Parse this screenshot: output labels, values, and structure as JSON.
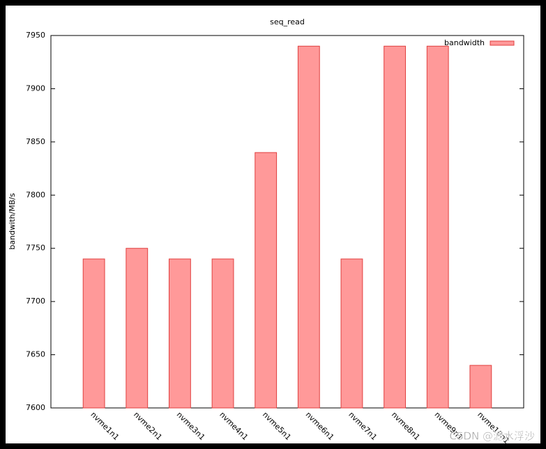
{
  "chart_data": {
    "type": "bar",
    "title": "seq_read",
    "y_label": "bandwith/MB/s",
    "categories": [
      "nvme1n1",
      "nvme2n1",
      "nvme3n1",
      "nvme4n1",
      "nvme5n1",
      "nvme6n1",
      "nvme7n1",
      "nvme8n1",
      "nvme9n1",
      "nvme10n1"
    ],
    "series": [
      {
        "name": "bandwidth",
        "color": "#ff9999",
        "values": [
          7740,
          7750,
          7740,
          7740,
          7840,
          7940,
          7740,
          7940,
          7940,
          7640
        ]
      }
    ],
    "ylim": [
      7600,
      7950
    ],
    "yticks": [
      7600,
      7650,
      7700,
      7750,
      7800,
      7850,
      7900,
      7950
    ],
    "legend": "top-right",
    "watermark": "CSDN @滤水浮沙"
  }
}
